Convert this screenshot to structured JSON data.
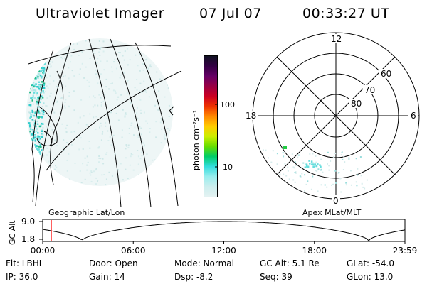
{
  "header": {
    "title": "Ultraviolet Imager",
    "date": "07 Jul 07",
    "time": "00:33:27 UT"
  },
  "colorbar": {
    "unit_label": "photon cm⁻²s⁻¹",
    "ticks": [
      "100",
      "10"
    ],
    "colors": [
      "#111122",
      "#330044",
      "#660066",
      "#990044",
      "#cc0022",
      "#ee3300",
      "#ff8800",
      "#ffcc00",
      "#ccee00",
      "#66dd00",
      "#00cc66",
      "#33dddd",
      "#99eeee",
      "#cceeee",
      "#e4f2f2"
    ]
  },
  "polar_plot": {
    "mlt_labels": [
      "12",
      "18",
      "6",
      "0"
    ],
    "lat_labels": [
      "60",
      "70",
      "80"
    ]
  },
  "projection_labels": {
    "left": "Geographic Lat/Lon",
    "right": "Apex MLat/MLT"
  },
  "altitude_strip": {
    "axis_title": "GC Alt",
    "y_ticks": [
      "9.0",
      "1.8"
    ],
    "x_ticks": [
      "00:00",
      "06:00",
      "12:00",
      "18:00",
      "23:59"
    ],
    "current_marker_hours": 0.56,
    "marker_color": "#ff0000"
  },
  "info": {
    "flt": "Flt: LBHL",
    "ip": "IP: 36.0",
    "door": "Door: Open",
    "gain": "Gain: 14",
    "mode": "Mode: Normal",
    "dsp": "Dsp:   -8.2",
    "gcalt": "GC Alt: 5.1 Re",
    "seq": "Seq: 39",
    "glat": "GLat: -54.0",
    "glon": "GLon:  13.0"
  }
}
